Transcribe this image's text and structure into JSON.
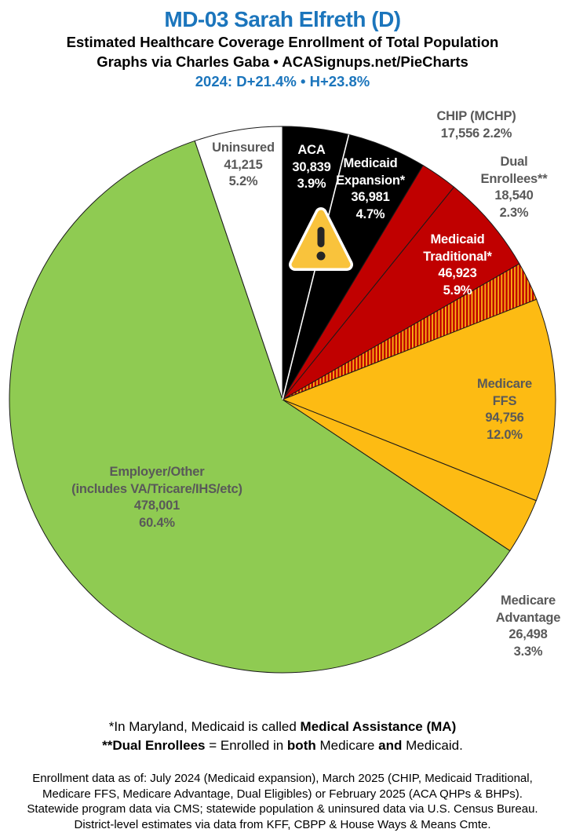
{
  "header": {
    "title": "MD-03 Sarah Elfreth (D)",
    "subtitle1": "Estimated Healthcare Coverage Enrollment of Total Population",
    "subtitle2": "Graphs via Charles Gaba   •   ACASignups.net/PieCharts",
    "partisan_line": "2024: D+21.4%  •  H+23.8%"
  },
  "chart_data": {
    "type": "pie",
    "title": "Estimated Healthcare Coverage Enrollment of Total Population",
    "district": "MD-03",
    "representative": "Sarah Elfreth (D)",
    "clockwise_from_top": true,
    "slices": [
      {
        "id": "aca",
        "label": "ACA",
        "enrollment": "30,839",
        "value": 3.9,
        "percent": "3.9%",
        "color_key": "black"
      },
      {
        "id": "medicaid-expansion",
        "label": "Medicaid Expansion*",
        "enrollment": "36,981",
        "value": 4.7,
        "percent": "4.7%",
        "color_key": "black"
      },
      {
        "id": "chip",
        "label": "CHIP (MCHP)",
        "enrollment": "17,556",
        "value": 2.2,
        "percent": "2.2%",
        "color_key": "red"
      },
      {
        "id": "medicaid-traditional",
        "label": "Medicaid Traditional*",
        "enrollment": "46,923",
        "value": 5.9,
        "percent": "5.9%",
        "color_key": "red"
      },
      {
        "id": "dual-enrollees",
        "label": "Dual Enrollees**",
        "enrollment": "18,540",
        "value": 2.3,
        "percent": "2.3%",
        "color_key": "hatch"
      },
      {
        "id": "medicare-ffs",
        "label": "Medicare FFS",
        "enrollment": "94,756",
        "value": 12.0,
        "percent": "12.0%",
        "color_key": "yellow"
      },
      {
        "id": "medicare-advantage",
        "label": "Medicare Advantage",
        "enrollment": "26,498",
        "value": 3.3,
        "percent": "3.3%",
        "color_key": "yellow"
      },
      {
        "id": "employer-other",
        "label": "Employer/Other (includes VA/Tricare/IHS/etc)",
        "enrollment": "478,001",
        "value": 60.4,
        "percent": "60.4%",
        "color_key": "green"
      },
      {
        "id": "uninsured",
        "label": "Uninsured",
        "enrollment": "41,215",
        "value": 5.2,
        "percent": "5.2%",
        "color_key": "white"
      }
    ],
    "palette": {
      "black": "#000000",
      "red": "#c00000",
      "yellow": "#fdbb13",
      "green": "#8fcb52",
      "white": "#ffffff",
      "hatch_bg": "#c00000",
      "hatch_stripe": "#fdbb13",
      "outline": "#1a1a1a",
      "warning_triangle": "#f9c33c"
    }
  },
  "callouts": {
    "uninsured": "Uninsured\n41,215\n5.2%",
    "aca": "ACA\n30,839\n3.9%",
    "medicaid_expansion": "Medicaid\nExpansion*\n36,981\n4.7%",
    "chip": "CHIP (MCHP)\n17,556 2.2%",
    "dual_enrollees": "Dual Enrollees**\n18,540 2.3%",
    "medicaid_traditional": "Medicaid\nTraditional*\n46,923\n5.9%",
    "medicare_ffs": "Medicare FFS\n94,756\n12.0%",
    "employer_other": "Employer/Other\n(includes VA/Tricare/IHS/etc)\n478,001\n60.4%",
    "medicare_advantage": "Medicare\nAdvantage\n26,498\n3.3%"
  },
  "footnotes": {
    "line1": [
      "*In Maryland, Medicaid is called ",
      "Medical Assistance (MA)"
    ],
    "line2": [
      "**Dual Enrollees",
      " = Enrolled in ",
      "both",
      " Medicare ",
      "and",
      " Medicaid."
    ],
    "source_block": "Enrollment data as of: July 2024 (Medicaid expansion), March 2025 (CHIP, Medicaid Traditional,\nMedicare FFS, Medicare Advantage, Dual Eligibles) or February 2025 (ACA QHPs & BHPs).\nStatewide program data via CMS; statewide population & uninsured data via U.S. Census Bureau.\nDistrict-level estimates via data from KFF, CBPP & House Ways & Means Cmte."
  }
}
